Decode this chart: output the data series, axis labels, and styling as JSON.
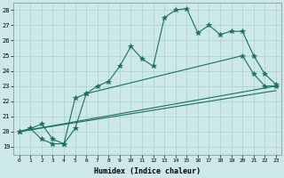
{
  "xlabel": "Humidex (Indice chaleur)",
  "xlim": [
    -0.5,
    23.5
  ],
  "ylim": [
    18.5,
    28.5
  ],
  "yticks": [
    19,
    20,
    21,
    22,
    23,
    24,
    25,
    26,
    27,
    28
  ],
  "xticks": [
    0,
    1,
    2,
    3,
    4,
    5,
    6,
    7,
    8,
    9,
    10,
    11,
    12,
    13,
    14,
    15,
    16,
    17,
    18,
    19,
    20,
    21,
    22,
    23
  ],
  "bg_color": "#cce8e8",
  "line_color": "#1a7060",
  "grid_color": "#aacfcf",
  "series": [
    {
      "x": [
        0,
        1,
        2,
        3,
        4,
        5,
        6,
        7,
        8,
        9,
        10,
        11,
        12,
        13,
        14,
        15,
        16,
        17,
        18,
        19,
        20,
        21,
        22,
        23
      ],
      "y": [
        20,
        20.2,
        20.5,
        19.5,
        19.2,
        22.2,
        22.5,
        23.0,
        23.3,
        24.3,
        25.6,
        24.8,
        24.3,
        27.5,
        28.0,
        28.1,
        26.5,
        27.0,
        26.4,
        26.6,
        26.6,
        25.0,
        23.8,
        23.1
      ],
      "marker": "*",
      "markersize": 4
    },
    {
      "x": [
        0,
        1,
        2,
        3,
        4,
        5,
        6,
        20,
        21,
        22,
        23
      ],
      "y": [
        20,
        20.2,
        19.5,
        19.2,
        19.2,
        20.2,
        22.5,
        25.0,
        23.8,
        23.0,
        23.0
      ],
      "marker": "*",
      "markersize": 4
    },
    {
      "x": [
        0,
        23
      ],
      "y": [
        20,
        23.0
      ],
      "marker": null,
      "markersize": 0
    },
    {
      "x": [
        0,
        23
      ],
      "y": [
        20,
        22.7
      ],
      "marker": null,
      "markersize": 0
    }
  ]
}
